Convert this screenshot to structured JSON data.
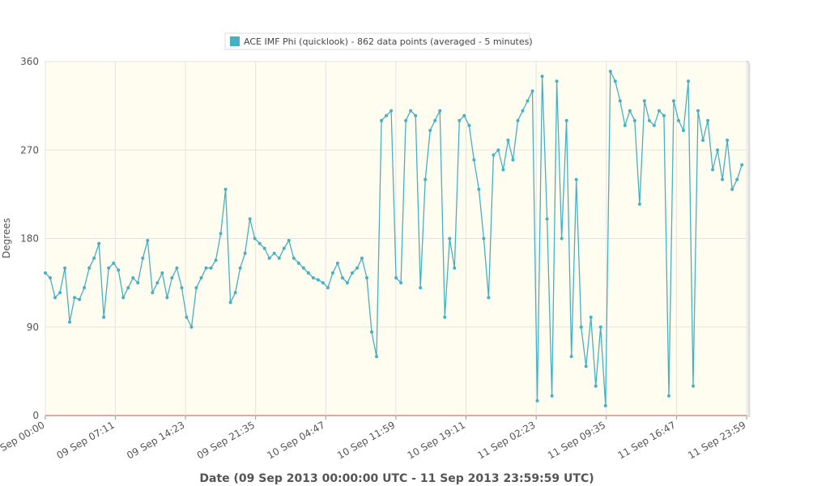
{
  "chart_data": {
    "type": "line",
    "xlabel": "Date (09 Sep 2013 00:00:00 UTC - 11 Sep 2013 23:59:59 UTC)",
    "ylabel": "Degrees",
    "x": [
      "2013-09-09T00:00",
      "2013-09-09T00:30",
      "2013-09-09T01:00",
      "2013-09-09T01:30",
      "2013-09-09T02:00",
      "2013-09-09T02:30",
      "2013-09-09T03:00",
      "2013-09-09T03:30",
      "2013-09-09T04:00",
      "2013-09-09T04:30",
      "2013-09-09T05:00",
      "2013-09-09T05:30",
      "2013-09-09T06:00",
      "2013-09-09T06:30",
      "2013-09-09T07:00",
      "2013-09-09T07:30",
      "2013-09-09T08:00",
      "2013-09-09T08:30",
      "2013-09-09T09:00",
      "2013-09-09T09:30",
      "2013-09-09T10:00",
      "2013-09-09T10:30",
      "2013-09-09T11:00",
      "2013-09-09T11:30",
      "2013-09-09T12:00",
      "2013-09-09T12:30",
      "2013-09-09T13:00",
      "2013-09-09T13:30",
      "2013-09-09T14:00",
      "2013-09-09T14:30",
      "2013-09-09T15:00",
      "2013-09-09T15:30",
      "2013-09-09T16:00",
      "2013-09-09T16:30",
      "2013-09-09T17:00",
      "2013-09-09T17:30",
      "2013-09-09T18:00",
      "2013-09-09T18:30",
      "2013-09-09T19:00",
      "2013-09-09T19:30",
      "2013-09-09T20:00",
      "2013-09-09T20:30",
      "2013-09-09T21:00",
      "2013-09-09T21:30",
      "2013-09-09T22:00",
      "2013-09-09T22:30",
      "2013-09-09T23:00",
      "2013-09-09T23:30",
      "2013-09-10T00:00",
      "2013-09-10T00:30",
      "2013-09-10T01:00",
      "2013-09-10T01:30",
      "2013-09-10T02:00",
      "2013-09-10T02:30",
      "2013-09-10T03:00",
      "2013-09-10T03:30",
      "2013-09-10T04:00",
      "2013-09-10T04:30",
      "2013-09-10T05:00",
      "2013-09-10T05:30",
      "2013-09-10T06:00",
      "2013-09-10T06:30",
      "2013-09-10T07:00",
      "2013-09-10T07:30",
      "2013-09-10T08:00",
      "2013-09-10T08:30",
      "2013-09-10T09:00",
      "2013-09-10T09:30",
      "2013-09-10T10:00",
      "2013-09-10T10:30",
      "2013-09-10T11:00",
      "2013-09-10T11:30",
      "2013-09-10T12:00",
      "2013-09-10T12:30",
      "2013-09-10T13:00",
      "2013-09-10T13:30",
      "2013-09-10T14:00",
      "2013-09-10T14:30",
      "2013-09-10T15:00",
      "2013-09-10T15:30",
      "2013-09-10T16:00",
      "2013-09-10T16:30",
      "2013-09-10T17:00",
      "2013-09-10T17:30",
      "2013-09-10T18:00",
      "2013-09-10T18:30",
      "2013-09-10T19:00",
      "2013-09-10T19:30",
      "2013-09-10T20:00",
      "2013-09-10T20:30",
      "2013-09-10T21:00",
      "2013-09-10T21:30",
      "2013-09-10T22:00",
      "2013-09-10T22:30",
      "2013-09-10T23:00",
      "2013-09-10T23:30",
      "2013-09-11T00:00",
      "2013-09-11T00:30",
      "2013-09-11T01:00",
      "2013-09-11T01:30",
      "2013-09-11T02:00",
      "2013-09-11T02:30",
      "2013-09-11T03:00",
      "2013-09-11T03:30",
      "2013-09-11T04:00",
      "2013-09-11T04:30",
      "2013-09-11T05:00",
      "2013-09-11T05:30",
      "2013-09-11T06:00",
      "2013-09-11T06:30",
      "2013-09-11T07:00",
      "2013-09-11T07:30",
      "2013-09-11T08:00",
      "2013-09-11T08:30",
      "2013-09-11T09:00",
      "2013-09-11T09:30",
      "2013-09-11T10:00",
      "2013-09-11T10:30",
      "2013-09-11T11:00",
      "2013-09-11T11:30",
      "2013-09-11T12:00",
      "2013-09-11T12:30",
      "2013-09-11T13:00",
      "2013-09-11T13:30",
      "2013-09-11T14:00",
      "2013-09-11T14:30",
      "2013-09-11T15:00",
      "2013-09-11T15:30",
      "2013-09-11T16:00",
      "2013-09-11T16:30",
      "2013-09-11T17:00",
      "2013-09-11T17:30",
      "2013-09-11T18:00",
      "2013-09-11T18:30",
      "2013-09-11T19:00",
      "2013-09-11T19:30",
      "2013-09-11T20:00",
      "2013-09-11T20:30",
      "2013-09-11T21:00",
      "2013-09-11T21:30",
      "2013-09-11T22:00",
      "2013-09-11T22:30",
      "2013-09-11T23:00",
      "2013-09-11T23:30"
    ],
    "series": [
      {
        "name": "ACE IMF Phi (quicklook) - 862 data points (averaged - 5 minutes)",
        "color": "#46b0c4",
        "values": [
          145,
          140,
          120,
          125,
          150,
          95,
          120,
          118,
          130,
          150,
          160,
          175,
          100,
          150,
          155,
          148,
          120,
          130,
          140,
          135,
          160,
          178,
          125,
          135,
          145,
          120,
          140,
          150,
          130,
          100,
          90,
          130,
          140,
          150,
          150,
          158,
          185,
          230,
          115,
          125,
          150,
          165,
          200,
          180,
          175,
          170,
          160,
          165,
          160,
          170,
          178,
          160,
          155,
          150,
          145,
          140,
          138,
          135,
          130,
          145,
          155,
          140,
          135,
          145,
          150,
          160,
          140,
          85,
          60,
          300,
          305,
          310,
          140,
          135,
          300,
          310,
          305,
          130,
          240,
          290,
          300,
          310,
          100,
          180,
          150,
          300,
          305,
          295,
          260,
          230,
          180,
          120,
          265,
          270,
          250,
          280,
          260,
          300,
          310,
          320,
          330,
          15,
          345,
          200,
          20,
          340,
          180,
          300,
          60,
          240,
          90,
          50,
          100,
          30,
          90,
          10,
          350,
          340,
          320,
          295,
          310,
          300,
          215,
          320,
          300,
          295,
          310,
          305,
          20,
          320,
          300,
          290,
          340,
          30,
          310,
          280,
          300,
          250,
          270,
          240,
          280,
          230,
          240,
          255
        ]
      }
    ],
    "xlim": [
      "2013-09-09T00:00",
      "2013-09-11T23:59"
    ],
    "xticks": [
      {
        "value": "2013-09-09T00:00",
        "label": "09 Sep 00:00"
      },
      {
        "value": "2013-09-09T07:11",
        "label": "09 Sep 07:11"
      },
      {
        "value": "2013-09-09T14:23",
        "label": "09 Sep 14:23"
      },
      {
        "value": "2013-09-09T21:35",
        "label": "09 Sep 21:35"
      },
      {
        "value": "2013-09-10T04:47",
        "label": "10 Sep 04:47"
      },
      {
        "value": "2013-09-10T11:59",
        "label": "10 Sep 11:59"
      },
      {
        "value": "2013-09-10T19:11",
        "label": "10 Sep 19:11"
      },
      {
        "value": "2013-09-11T02:23",
        "label": "11 Sep 02:23"
      },
      {
        "value": "2013-09-11T09:35",
        "label": "11 Sep 09:35"
      },
      {
        "value": "2013-09-11T16:47",
        "label": "11 Sep 16:47"
      },
      {
        "value": "2013-09-11T23:59",
        "label": "11 Sep 23:59"
      }
    ],
    "ylim": [
      0,
      360
    ],
    "yticks": [
      0,
      90,
      180,
      270,
      360
    ],
    "grid": true
  }
}
